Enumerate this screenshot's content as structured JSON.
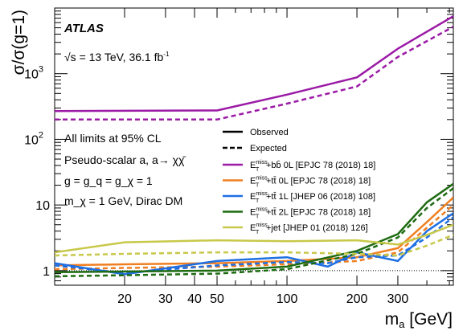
{
  "chart_data": {
    "type": "line",
    "x_scale": "log",
    "y_scale": "log",
    "xlim": [
      10,
      520
    ],
    "ylim": [
      0.6,
      10000
    ],
    "xlabel": "m_a [GeV]",
    "ylabel": "σ/σ(g=1)",
    "x_ticks": [
      {
        "value": 20,
        "label": "20"
      },
      {
        "value": 30,
        "label": "30"
      },
      {
        "value": 40,
        "label": "40"
      },
      {
        "value": 50,
        "label": "50"
      },
      {
        "value": 100,
        "label": "100"
      },
      {
        "value": 200,
        "label": "200"
      },
      {
        "value": 300,
        "label": "300"
      }
    ],
    "y_ticks": [
      {
        "value": 1,
        "label": "1"
      },
      {
        "value": 10,
        "label": "10"
      },
      {
        "value": 100,
        "label": "10",
        "exp": "2"
      },
      {
        "value": 1000,
        "label": "10",
        "exp": "3"
      }
    ],
    "reference_line": {
      "y": 1,
      "style": "dotted"
    },
    "line_styles_legend": [
      {
        "style": "solid",
        "label": "Observed"
      },
      {
        "style": "dashed",
        "label": "Expected"
      }
    ],
    "series": [
      {
        "name": "E_T^miss+bb̄ 0L [EPJC 78 (2018) 18]",
        "color": "#9b1aa6",
        "observed": {
          "x": [
            10,
            50,
            100,
            200,
            300,
            520
          ],
          "y": [
            270,
            275,
            480,
            880,
            2400,
            7500
          ]
        },
        "expected": {
          "x": [
            10,
            50,
            100,
            200,
            300,
            520
          ],
          "y": [
            200,
            200,
            350,
            640,
            1800,
            5200
          ]
        }
      },
      {
        "name": "E_T^miss+tt̄ 0L [EPJC 78 (2018) 18]",
        "color": "#f07f22",
        "observed": {
          "x": [
            10,
            20,
            50,
            100,
            200,
            300,
            400,
            520
          ],
          "y": [
            1.2,
            1.25,
            1.3,
            1.4,
            1.6,
            2.2,
            5.5,
            13
          ]
        },
        "expected": {
          "x": [
            10,
            20,
            50,
            100,
            200,
            300,
            400,
            520
          ],
          "y": [
            1.05,
            1.1,
            1.15,
            1.25,
            1.4,
            1.9,
            4.5,
            10
          ]
        }
      },
      {
        "name": "E_T^miss+tt̄ 1L [JHEP 06 (2018) 108]",
        "color": "#1f6fe3",
        "observed": {
          "x": [
            10,
            20,
            50,
            100,
            150,
            200,
            300,
            400,
            520
          ],
          "y": [
            1.3,
            0.88,
            1.4,
            1.6,
            1.15,
            1.9,
            1.4,
            4.0,
            7.5
          ]
        },
        "expected": {
          "x": [
            10,
            20,
            50,
            100,
            150,
            200,
            300,
            400,
            520
          ],
          "y": [
            1.2,
            0.92,
            1.2,
            1.35,
            1.3,
            1.6,
            1.7,
            3.2,
            6.5
          ]
        }
      },
      {
        "name": "E_T^miss+tt̄ 2L [EPJC 78 (2018) 18]",
        "color": "#1e6b12",
        "observed": {
          "x": [
            10,
            20,
            50,
            100,
            200,
            300,
            400,
            520
          ],
          "y": [
            0.95,
            0.97,
            1.0,
            1.15,
            2.0,
            3.6,
            11,
            21
          ]
        },
        "expected": {
          "x": [
            10,
            20,
            50,
            100,
            200,
            300,
            400,
            520
          ],
          "y": [
            0.82,
            0.85,
            0.9,
            1.05,
            1.8,
            3.2,
            9,
            18
          ]
        }
      },
      {
        "name": "E_T^miss+jet [JHEP 01 (2018) 126]",
        "color": "#c8c84a",
        "observed": {
          "x": [
            10,
            20,
            50,
            100,
            200,
            300,
            400,
            520
          ],
          "y": [
            1.9,
            2.7,
            2.9,
            2.8,
            2.9,
            2.5,
            3.5,
            5.0
          ]
        },
        "expected": {
          "x": [
            10,
            20,
            50,
            100,
            200,
            300,
            400,
            520
          ],
          "y": [
            1.7,
            1.8,
            1.9,
            1.9,
            1.8,
            1.7,
            2.4,
            3.5
          ]
        }
      }
    ]
  },
  "annotations": {
    "experiment": "ATLAS",
    "energy_prefix": "√s = 13 TeV, 36.1 fb",
    "energy_exp": "-1",
    "limits": "All limits at 95% CL",
    "model": "Pseudo-scalar a, a→ χχ̄",
    "couplings": "g = g_q = g_χ = 1",
    "dm": "m_χ = 1 GeV, Dirac DM"
  },
  "legend": {
    "observed_label": "Observed",
    "expected_label": "Expected",
    "entries": [
      {
        "prefix": "E",
        "sub": "T",
        "sup": "miss",
        "suffix": "+bb̄ 0L [EPJC 78 (2018) 18]"
      },
      {
        "prefix": "E",
        "sub": "T",
        "sup": "miss",
        "suffix": "+tt̄ 0L [EPJC 78 (2018) 18]"
      },
      {
        "prefix": "E",
        "sub": "T",
        "sup": "miss",
        "suffix": "+tt̄ 1L [JHEP 06 (2018) 108]"
      },
      {
        "prefix": "E",
        "sub": "T",
        "sup": "miss",
        "suffix": "+tt̄ 2L [EPJC 78 (2018) 18]"
      },
      {
        "prefix": "E",
        "sub": "T",
        "sup": "miss",
        "suffix": "+jet [JHEP 01 (2018) 126]"
      }
    ]
  }
}
